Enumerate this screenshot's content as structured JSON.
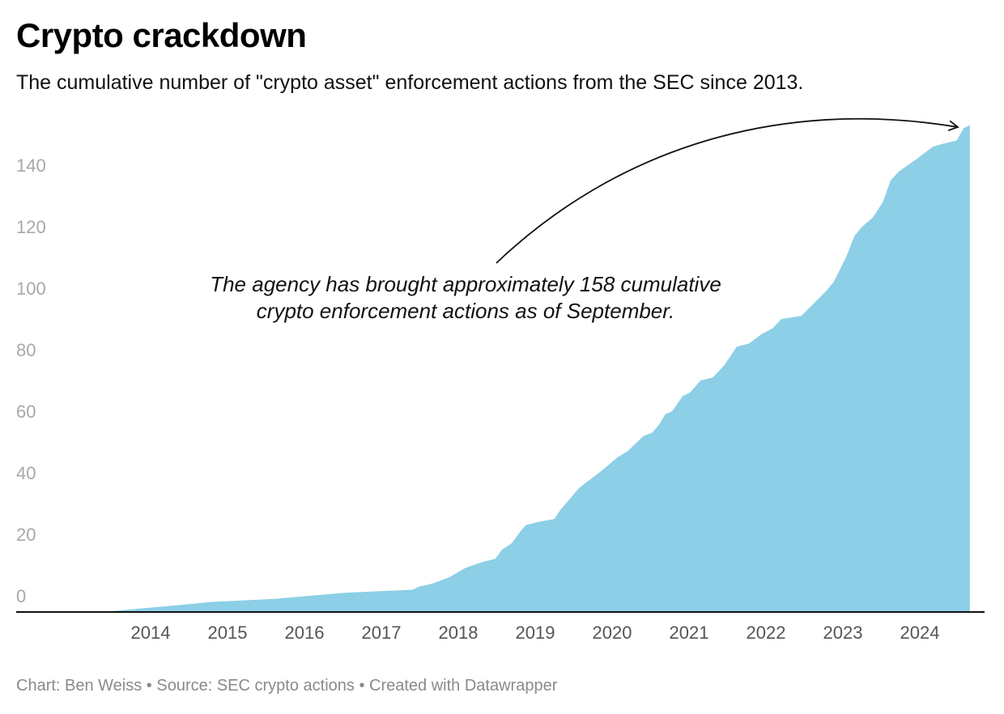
{
  "title": "Crypto crackdown",
  "subtitle": "The cumulative number of \"crypto asset\" enforcement actions from the SEC since 2013.",
  "footer": "Chart: Ben Weiss • Source: SEC crypto actions • Created with Datawrapper",
  "colors": {
    "area": "#8ccfe6",
    "axis": "#000000",
    "tick_label": "#a8a8a8"
  },
  "chart_data": {
    "type": "area",
    "title": "Crypto crackdown",
    "xlabel": "",
    "ylabel": "",
    "xlim": [
      2013.48,
      2024.65
    ],
    "ylim": [
      0,
      158
    ],
    "grid": false,
    "y_ticks": [
      0,
      20,
      40,
      60,
      80,
      100,
      120,
      140
    ],
    "x_ticks": [
      "2014",
      "2015",
      "2016",
      "2017",
      "2018",
      "2019",
      "2020",
      "2021",
      "2022",
      "2023",
      "2024"
    ],
    "x": [
      2013.48,
      2014.38,
      2014.78,
      2015.62,
      2016.52,
      2017.41,
      2017.49,
      2017.67,
      2017.88,
      2018.09,
      2018.31,
      2018.48,
      2018.57,
      2018.69,
      2018.81,
      2018.88,
      2019.04,
      2019.25,
      2019.33,
      2019.57,
      2019.67,
      2019.78,
      2019.88,
      2020.07,
      2020.2,
      2020.41,
      2020.52,
      2020.62,
      2020.69,
      2020.78,
      2020.92,
      2021.01,
      2021.15,
      2021.31,
      2021.46,
      2021.62,
      2021.78,
      2021.94,
      2022.09,
      2022.2,
      2022.46,
      2022.62,
      2022.78,
      2022.88,
      2023.04,
      2023.15,
      2023.25,
      2023.39,
      2023.52,
      2023.62,
      2023.73,
      2023.96,
      2024.17,
      2024.31,
      2024.48,
      2024.57,
      2024.65
    ],
    "y": [
      0,
      2,
      3,
      4,
      6,
      7,
      8,
      9,
      11,
      14,
      16,
      17,
      20,
      22,
      26,
      28,
      29,
      30,
      33,
      40,
      42,
      44,
      46,
      50,
      52,
      57,
      58,
      61,
      64,
      65,
      70,
      71,
      75,
      76,
      80,
      86,
      87,
      90,
      92,
      95,
      96,
      100,
      104,
      107,
      115,
      122,
      125,
      128,
      133,
      140,
      143,
      147,
      151,
      152,
      153,
      157,
      158
    ],
    "annotation": {
      "line1": "The agency has brought approximately 158 cumulative",
      "line2": "crypto enforcement actions as of September."
    }
  }
}
